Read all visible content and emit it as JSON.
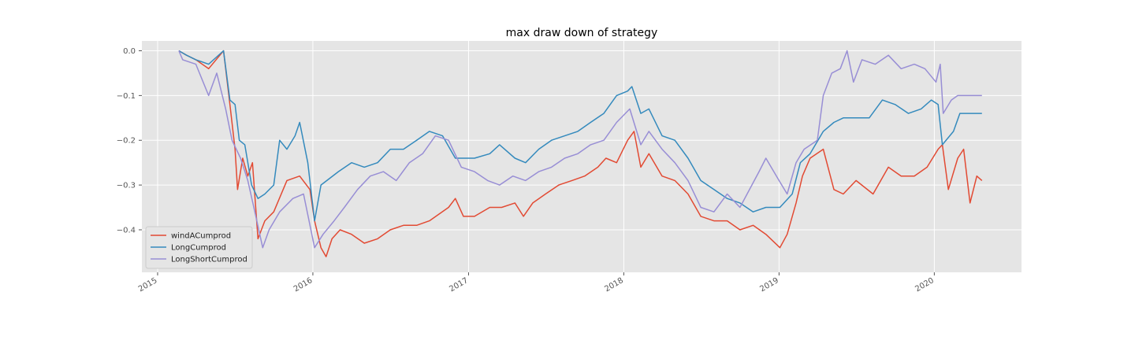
{
  "chart_data": {
    "type": "line",
    "title": "max draw down of strategy",
    "xlabel": "",
    "ylabel": "",
    "x_range": [
      "2014-11-25",
      "2020-07-24"
    ],
    "ylim": [
      -0.495,
      0.022
    ],
    "x_ticks": [
      {
        "date": "2015-01-01",
        "label": "2015"
      },
      {
        "date": "2016-01-01",
        "label": "2016"
      },
      {
        "date": "2017-01-01",
        "label": "2017"
      },
      {
        "date": "2018-01-01",
        "label": "2018"
      },
      {
        "date": "2019-01-01",
        "label": "2019"
      },
      {
        "date": "2020-01-01",
        "label": "2020"
      }
    ],
    "y_ticks": [
      {
        "value": 0.0,
        "label": "0.0"
      },
      {
        "value": -0.1,
        "label": "−0.1"
      },
      {
        "value": -0.2,
        "label": "−0.2"
      },
      {
        "value": -0.3,
        "label": "−0.3"
      },
      {
        "value": -0.4,
        "label": "−0.4"
      }
    ],
    "grid": true,
    "legend_position": "lower-left",
    "series": [
      {
        "name": "windACumprod",
        "color": "#e24a33",
        "points": [
          [
            "2015-02-20",
            0.0
          ],
          [
            "2015-03-10",
            -0.01
          ],
          [
            "2015-04-01",
            -0.02
          ],
          [
            "2015-05-01",
            -0.04
          ],
          [
            "2015-06-05",
            0.0
          ],
          [
            "2015-06-20",
            -0.12
          ],
          [
            "2015-07-02",
            -0.22
          ],
          [
            "2015-07-08",
            -0.31
          ],
          [
            "2015-07-20",
            -0.24
          ],
          [
            "2015-08-01",
            -0.28
          ],
          [
            "2015-08-12",
            -0.25
          ],
          [
            "2015-08-25",
            -0.42
          ],
          [
            "2015-09-10",
            -0.38
          ],
          [
            "2015-10-01",
            -0.36
          ],
          [
            "2015-11-01",
            -0.29
          ],
          [
            "2015-12-01",
            -0.28
          ],
          [
            "2015-12-25",
            -0.31
          ],
          [
            "2016-01-05",
            -0.38
          ],
          [
            "2016-01-20",
            -0.44
          ],
          [
            "2016-02-01",
            -0.46
          ],
          [
            "2016-02-15",
            -0.42
          ],
          [
            "2016-03-05",
            -0.4
          ],
          [
            "2016-04-01",
            -0.41
          ],
          [
            "2016-05-01",
            -0.43
          ],
          [
            "2016-06-01",
            -0.42
          ],
          [
            "2016-07-01",
            -0.4
          ],
          [
            "2016-08-01",
            -0.39
          ],
          [
            "2016-09-01",
            -0.39
          ],
          [
            "2016-10-01",
            -0.38
          ],
          [
            "2016-11-15",
            -0.35
          ],
          [
            "2016-12-01",
            -0.33
          ],
          [
            "2016-12-20",
            -0.37
          ],
          [
            "2017-01-15",
            -0.37
          ],
          [
            "2017-02-20",
            -0.35
          ],
          [
            "2017-03-20",
            -0.35
          ],
          [
            "2017-04-20",
            -0.34
          ],
          [
            "2017-05-10",
            -0.37
          ],
          [
            "2017-06-01",
            -0.34
          ],
          [
            "2017-07-01",
            -0.32
          ],
          [
            "2017-08-01",
            -0.3
          ],
          [
            "2017-09-01",
            -0.29
          ],
          [
            "2017-10-01",
            -0.28
          ],
          [
            "2017-11-01",
            -0.26
          ],
          [
            "2017-11-20",
            -0.24
          ],
          [
            "2017-12-15",
            -0.25
          ],
          [
            "2018-01-10",
            -0.2
          ],
          [
            "2018-01-25",
            -0.18
          ],
          [
            "2018-02-10",
            -0.26
          ],
          [
            "2018-03-01",
            -0.23
          ],
          [
            "2018-04-01",
            -0.28
          ],
          [
            "2018-05-01",
            -0.29
          ],
          [
            "2018-06-01",
            -0.32
          ],
          [
            "2018-07-01",
            -0.37
          ],
          [
            "2018-08-01",
            -0.38
          ],
          [
            "2018-09-01",
            -0.38
          ],
          [
            "2018-10-01",
            -0.4
          ],
          [
            "2018-11-01",
            -0.39
          ],
          [
            "2018-12-01",
            -0.41
          ],
          [
            "2019-01-03",
            -0.44
          ],
          [
            "2019-01-20",
            -0.41
          ],
          [
            "2019-02-10",
            -0.34
          ],
          [
            "2019-02-25",
            -0.28
          ],
          [
            "2019-03-15",
            -0.24
          ],
          [
            "2019-04-15",
            -0.22
          ],
          [
            "2019-05-10",
            -0.31
          ],
          [
            "2019-06-01",
            -0.32
          ],
          [
            "2019-07-01",
            -0.29
          ],
          [
            "2019-08-10",
            -0.32
          ],
          [
            "2019-09-15",
            -0.26
          ],
          [
            "2019-10-15",
            -0.28
          ],
          [
            "2019-11-15",
            -0.28
          ],
          [
            "2019-12-15",
            -0.26
          ],
          [
            "2020-01-10",
            -0.22
          ],
          [
            "2020-01-20",
            -0.21
          ],
          [
            "2020-02-03",
            -0.31
          ],
          [
            "2020-02-25",
            -0.24
          ],
          [
            "2020-03-10",
            -0.22
          ],
          [
            "2020-03-25",
            -0.34
          ],
          [
            "2020-04-10",
            -0.28
          ],
          [
            "2020-04-22",
            -0.29
          ]
        ]
      },
      {
        "name": "LongCumprod",
        "color": "#348abd",
        "points": [
          [
            "2015-02-20",
            0.0
          ],
          [
            "2015-03-10",
            -0.01
          ],
          [
            "2015-04-01",
            -0.02
          ],
          [
            "2015-05-01",
            -0.03
          ],
          [
            "2015-06-05",
            0.0
          ],
          [
            "2015-06-20",
            -0.11
          ],
          [
            "2015-07-02",
            -0.12
          ],
          [
            "2015-07-12",
            -0.2
          ],
          [
            "2015-07-25",
            -0.21
          ],
          [
            "2015-08-10",
            -0.3
          ],
          [
            "2015-08-25",
            -0.33
          ],
          [
            "2015-09-10",
            -0.32
          ],
          [
            "2015-10-01",
            -0.3
          ],
          [
            "2015-10-15",
            -0.2
          ],
          [
            "2015-11-01",
            -0.22
          ],
          [
            "2015-11-20",
            -0.19
          ],
          [
            "2015-12-01",
            -0.16
          ],
          [
            "2015-12-20",
            -0.25
          ],
          [
            "2016-01-05",
            -0.38
          ],
          [
            "2016-01-20",
            -0.3
          ],
          [
            "2016-03-01",
            -0.27
          ],
          [
            "2016-04-01",
            -0.25
          ],
          [
            "2016-05-01",
            -0.26
          ],
          [
            "2016-06-01",
            -0.25
          ],
          [
            "2016-07-01",
            -0.22
          ],
          [
            "2016-08-01",
            -0.22
          ],
          [
            "2016-09-01",
            -0.2
          ],
          [
            "2016-10-01",
            -0.18
          ],
          [
            "2016-11-01",
            -0.19
          ],
          [
            "2016-12-01",
            -0.24
          ],
          [
            "2017-01-15",
            -0.24
          ],
          [
            "2017-02-20",
            -0.23
          ],
          [
            "2017-03-15",
            -0.21
          ],
          [
            "2017-04-20",
            -0.24
          ],
          [
            "2017-05-15",
            -0.25
          ],
          [
            "2017-06-15",
            -0.22
          ],
          [
            "2017-07-15",
            -0.2
          ],
          [
            "2017-08-15",
            -0.19
          ],
          [
            "2017-09-15",
            -0.18
          ],
          [
            "2017-10-15",
            -0.16
          ],
          [
            "2017-11-15",
            -0.14
          ],
          [
            "2017-12-15",
            -0.1
          ],
          [
            "2018-01-10",
            -0.09
          ],
          [
            "2018-01-20",
            -0.08
          ],
          [
            "2018-02-10",
            -0.14
          ],
          [
            "2018-03-01",
            -0.13
          ],
          [
            "2018-04-01",
            -0.19
          ],
          [
            "2018-05-01",
            -0.2
          ],
          [
            "2018-06-01",
            -0.24
          ],
          [
            "2018-07-01",
            -0.29
          ],
          [
            "2018-08-01",
            -0.31
          ],
          [
            "2018-09-01",
            -0.33
          ],
          [
            "2018-10-01",
            -0.34
          ],
          [
            "2018-11-01",
            -0.36
          ],
          [
            "2018-12-01",
            -0.35
          ],
          [
            "2019-01-03",
            -0.35
          ],
          [
            "2019-02-01",
            -0.32
          ],
          [
            "2019-02-20",
            -0.25
          ],
          [
            "2019-03-15",
            -0.23
          ],
          [
            "2019-04-15",
            -0.18
          ],
          [
            "2019-05-10",
            -0.16
          ],
          [
            "2019-06-01",
            -0.15
          ],
          [
            "2019-07-01",
            -0.15
          ],
          [
            "2019-08-01",
            -0.15
          ],
          [
            "2019-09-01",
            -0.11
          ],
          [
            "2019-10-01",
            -0.12
          ],
          [
            "2019-11-01",
            -0.14
          ],
          [
            "2019-12-01",
            -0.13
          ],
          [
            "2019-12-25",
            -0.11
          ],
          [
            "2020-01-10",
            -0.12
          ],
          [
            "2020-01-20",
            -0.21
          ],
          [
            "2020-02-15",
            -0.18
          ],
          [
            "2020-03-01",
            -0.14
          ],
          [
            "2020-04-22",
            -0.14
          ]
        ]
      },
      {
        "name": "LongShortCumprod",
        "color": "#988ed5",
        "points": [
          [
            "2015-02-20",
            0.0
          ],
          [
            "2015-03-01",
            -0.02
          ],
          [
            "2015-04-01",
            -0.03
          ],
          [
            "2015-05-01",
            -0.1
          ],
          [
            "2015-05-20",
            -0.05
          ],
          [
            "2015-06-10",
            -0.13
          ],
          [
            "2015-06-25",
            -0.2
          ],
          [
            "2015-07-15",
            -0.24
          ],
          [
            "2015-08-01",
            -0.29
          ],
          [
            "2015-08-20",
            -0.37
          ],
          [
            "2015-09-05",
            -0.44
          ],
          [
            "2015-09-20",
            -0.4
          ],
          [
            "2015-10-15",
            -0.36
          ],
          [
            "2015-11-15",
            -0.33
          ],
          [
            "2015-12-10",
            -0.32
          ],
          [
            "2016-01-05",
            -0.44
          ],
          [
            "2016-01-25",
            -0.41
          ],
          [
            "2016-02-20",
            -0.38
          ],
          [
            "2016-03-15",
            -0.35
          ],
          [
            "2016-04-15",
            -0.31
          ],
          [
            "2016-05-15",
            -0.28
          ],
          [
            "2016-06-15",
            -0.27
          ],
          [
            "2016-07-15",
            -0.29
          ],
          [
            "2016-08-15",
            -0.25
          ],
          [
            "2016-09-15",
            -0.23
          ],
          [
            "2016-10-15",
            -0.19
          ],
          [
            "2016-11-15",
            -0.2
          ],
          [
            "2016-12-15",
            -0.26
          ],
          [
            "2017-01-15",
            -0.27
          ],
          [
            "2017-02-15",
            -0.29
          ],
          [
            "2017-03-15",
            -0.3
          ],
          [
            "2017-04-15",
            -0.28
          ],
          [
            "2017-05-15",
            -0.29
          ],
          [
            "2017-06-15",
            -0.27
          ],
          [
            "2017-07-15",
            -0.26
          ],
          [
            "2017-08-15",
            -0.24
          ],
          [
            "2017-09-15",
            -0.23
          ],
          [
            "2017-10-15",
            -0.21
          ],
          [
            "2017-11-15",
            -0.2
          ],
          [
            "2017-12-15",
            -0.16
          ],
          [
            "2018-01-15",
            -0.13
          ],
          [
            "2018-02-10",
            -0.21
          ],
          [
            "2018-03-01",
            -0.18
          ],
          [
            "2018-04-01",
            -0.22
          ],
          [
            "2018-05-01",
            -0.25
          ],
          [
            "2018-06-01",
            -0.29
          ],
          [
            "2018-07-01",
            -0.35
          ],
          [
            "2018-08-01",
            -0.36
          ],
          [
            "2018-09-01",
            -0.32
          ],
          [
            "2018-10-01",
            -0.35
          ],
          [
            "2018-11-15",
            -0.27
          ],
          [
            "2018-12-01",
            -0.24
          ],
          [
            "2019-01-01",
            -0.29
          ],
          [
            "2019-01-20",
            -0.32
          ],
          [
            "2019-02-10",
            -0.25
          ],
          [
            "2019-03-01",
            -0.22
          ],
          [
            "2019-04-01",
            -0.2
          ],
          [
            "2019-04-15",
            -0.1
          ],
          [
            "2019-05-05",
            -0.05
          ],
          [
            "2019-05-25",
            -0.04
          ],
          [
            "2019-06-10",
            0.0
          ],
          [
            "2019-06-25",
            -0.07
          ],
          [
            "2019-07-15",
            -0.02
          ],
          [
            "2019-08-15",
            -0.03
          ],
          [
            "2019-09-15",
            -0.01
          ],
          [
            "2019-10-15",
            -0.04
          ],
          [
            "2019-11-15",
            -0.03
          ],
          [
            "2019-12-10",
            -0.04
          ],
          [
            "2020-01-05",
            -0.07
          ],
          [
            "2020-01-15",
            -0.03
          ],
          [
            "2020-01-22",
            -0.14
          ],
          [
            "2020-02-10",
            -0.11
          ],
          [
            "2020-02-25",
            -0.1
          ],
          [
            "2020-04-22",
            -0.1
          ]
        ]
      }
    ]
  }
}
